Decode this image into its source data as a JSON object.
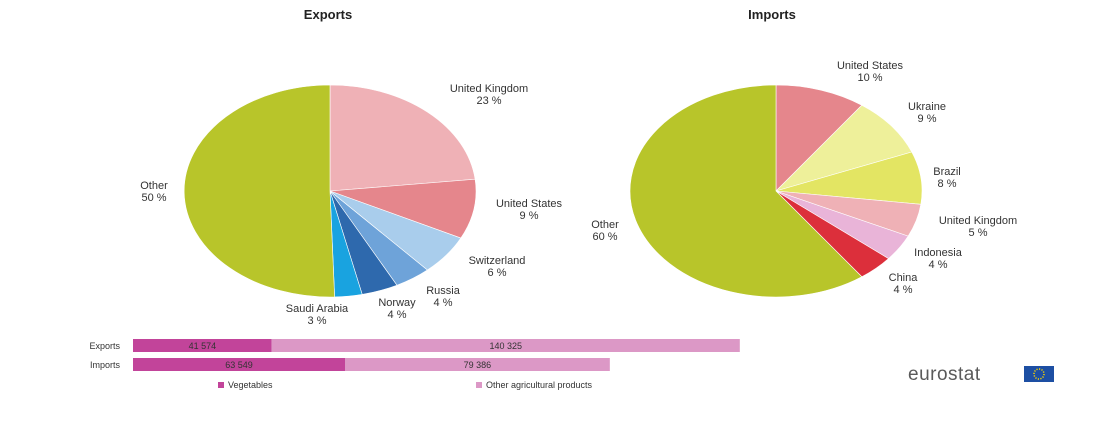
{
  "chart_data": [
    {
      "type": "pie",
      "title": "Exports",
      "slices": [
        {
          "label": "United Kingdom",
          "pct_label": "23 %",
          "value": 23,
          "color": "#efb1b6"
        },
        {
          "label": "United States",
          "pct_label": "9 %",
          "value": 9,
          "color": "#e5868c"
        },
        {
          "label": "Switzerland",
          "pct_label": "6 %",
          "value": 6,
          "color": "#a9cdec"
        },
        {
          "label": "Russia",
          "pct_label": "4 %",
          "value": 4,
          "color": "#6ea3d9"
        },
        {
          "label": "Norway",
          "pct_label": "4 %",
          "value": 4,
          "color": "#2e69ad"
        },
        {
          "label": "Saudi Arabia",
          "pct_label": "3 %",
          "value": 3,
          "color": "#19a3e0"
        },
        {
          "label": "Other",
          "pct_label": "50 %",
          "value": 50,
          "color": "#b8c52a"
        }
      ]
    },
    {
      "type": "pie",
      "title": "Imports",
      "slices": [
        {
          "label": "United States",
          "pct_label": "10 %",
          "value": 10,
          "color": "#e5868c"
        },
        {
          "label": "Ukraine",
          "pct_label": "9 %",
          "value": 9,
          "color": "#eef09a"
        },
        {
          "label": "Brazil",
          "pct_label": "8 %",
          "value": 8,
          "color": "#e3e563"
        },
        {
          "label": "United Kingdom",
          "pct_label": "5 %",
          "value": 5,
          "color": "#efb1b6"
        },
        {
          "label": "Indonesia",
          "pct_label": "4 %",
          "value": 4,
          "color": "#e9b4d8"
        },
        {
          "label": "China",
          "pct_label": "4 %",
          "value": 4,
          "color": "#dc2f3b"
        },
        {
          "label": "Other",
          "pct_label": "60 %",
          "value": 60,
          "color": "#b8c52a"
        }
      ]
    },
    {
      "type": "bar",
      "orientation": "horizontal",
      "stacked": true,
      "categories": [
        "Exports",
        "Imports"
      ],
      "series": [
        {
          "name": "Vegetables",
          "values": [
            41574,
            63549
          ],
          "labels": [
            "41 574",
            "63 549"
          ],
          "color": "#c2449a"
        },
        {
          "name": "Other agricultural products",
          "values": [
            140325,
            79386
          ],
          "labels": [
            "140 325",
            "79 386"
          ],
          "color": "#dc98c6"
        }
      ]
    }
  ],
  "logo": {
    "text": "eurostat"
  }
}
